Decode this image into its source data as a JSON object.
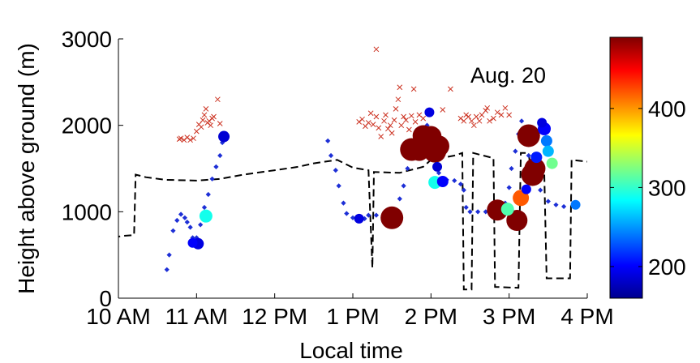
{
  "chart_data": {
    "type": "scatter",
    "title": "",
    "annotation": "Aug. 20",
    "xlabel": "Local time",
    "ylabel": "Height above ground (m)",
    "x_unit": "hours",
    "xlim": [
      10,
      16
    ],
    "ylim": [
      0,
      3000
    ],
    "x_ticks": [
      {
        "value": 10,
        "label": "10 AM"
      },
      {
        "value": 11,
        "label": "11 AM"
      },
      {
        "value": 12,
        "label": "12 PM"
      },
      {
        "value": 13,
        "label": "1 PM"
      },
      {
        "value": 14,
        "label": "2 PM"
      },
      {
        "value": 15,
        "label": "3 PM"
      },
      {
        "value": 16,
        "label": "4 PM"
      }
    ],
    "y_ticks": [
      {
        "value": 0,
        "label": "0"
      },
      {
        "value": 1000,
        "label": "1000"
      },
      {
        "value": 2000,
        "label": "2000"
      },
      {
        "value": 3000,
        "label": "3000"
      }
    ],
    "grid": false,
    "colorbar": {
      "range": [
        160,
        490
      ],
      "ticks": [
        {
          "value": 200,
          "label": "200"
        },
        {
          "value": 300,
          "label": "300"
        },
        {
          "value": 400,
          "label": "400"
        }
      ]
    },
    "colors": {
      "track": "#1d2fd6",
      "cross": "#cc3322",
      "line": "#000000"
    },
    "dashed_line": [
      [
        9.93,
        700
      ],
      [
        10.05,
        720
      ],
      [
        10.2,
        730
      ],
      [
        10.22,
        1430
      ],
      [
        10.35,
        1400
      ],
      [
        10.6,
        1370
      ],
      [
        11.0,
        1360
      ],
      [
        11.3,
        1380
      ],
      [
        11.6,
        1430
      ],
      [
        12.0,
        1480
      ],
      [
        12.3,
        1520
      ],
      [
        12.5,
        1560
      ],
      [
        12.8,
        1600
      ],
      [
        13.0,
        1510
      ],
      [
        13.2,
        1480
      ],
      [
        13.25,
        350
      ],
      [
        13.27,
        1460
      ],
      [
        13.6,
        1450
      ],
      [
        13.9,
        1520
      ],
      [
        14.0,
        1600
      ],
      [
        14.3,
        1650
      ],
      [
        14.4,
        1680
      ],
      [
        14.42,
        100
      ],
      [
        14.52,
        100
      ],
      [
        14.54,
        1680
      ],
      [
        14.8,
        1620
      ],
      [
        14.82,
        130
      ],
      [
        15.12,
        120
      ],
      [
        15.15,
        1680
      ],
      [
        15.25,
        1680
      ],
      [
        15.28,
        1450
      ],
      [
        15.45,
        1450
      ],
      [
        15.48,
        230
      ],
      [
        15.78,
        230
      ],
      [
        15.8,
        1600
      ],
      [
        16.2,
        1560
      ]
    ],
    "track": [
      [
        10.62,
        330
      ],
      [
        10.65,
        500
      ],
      [
        10.7,
        780
      ],
      [
        10.75,
        900
      ],
      [
        10.8,
        970
      ],
      [
        10.85,
        930
      ],
      [
        10.88,
        880
      ],
      [
        10.92,
        820
      ],
      [
        10.95,
        700
      ],
      [
        11.0,
        700
      ],
      [
        11.05,
        850
      ],
      [
        11.1,
        1050
      ],
      [
        11.15,
        1200
      ],
      [
        11.2,
        1380
      ],
      [
        11.25,
        1520
      ],
      [
        11.3,
        1650
      ],
      [
        11.33,
        1800
      ],
      [
        11.35,
        1860
      ],
      [
        12.68,
        1820
      ],
      [
        12.72,
        1650
      ],
      [
        12.78,
        1480
      ],
      [
        12.82,
        1300
      ],
      [
        12.88,
        1100
      ],
      [
        12.92,
        980
      ],
      [
        13.0,
        930
      ],
      [
        13.05,
        900
      ],
      [
        13.15,
        920
      ],
      [
        13.2,
        960
      ],
      [
        13.3,
        960
      ],
      [
        13.4,
        940
      ],
      [
        13.5,
        920
      ],
      [
        13.55,
        1000
      ],
      [
        13.6,
        1150
      ],
      [
        13.65,
        1300
      ],
      [
        13.7,
        1500
      ],
      [
        13.8,
        1700
      ],
      [
        13.9,
        1860
      ],
      [
        13.95,
        2000
      ],
      [
        14.0,
        1850
      ],
      [
        14.05,
        1650
      ],
      [
        14.1,
        1450
      ],
      [
        14.2,
        1370
      ],
      [
        14.3,
        1360
      ],
      [
        14.38,
        1320
      ],
      [
        14.42,
        1250
      ],
      [
        14.45,
        1050
      ],
      [
        14.5,
        1000
      ],
      [
        14.6,
        1000
      ],
      [
        14.7,
        1000
      ],
      [
        14.8,
        1000
      ],
      [
        14.9,
        1020
      ],
      [
        14.95,
        1100
      ],
      [
        15.0,
        1280
      ],
      [
        15.03,
        1500
      ],
      [
        15.08,
        1700
      ],
      [
        15.12,
        1900
      ],
      [
        15.16,
        2050
      ],
      [
        15.2,
        1900
      ],
      [
        15.25,
        1650
      ],
      [
        15.3,
        1500
      ],
      [
        15.35,
        1350
      ],
      [
        15.4,
        1250
      ],
      [
        15.5,
        1120
      ],
      [
        15.6,
        1080
      ],
      [
        15.7,
        1060
      ]
    ],
    "crosses": [
      [
        10.78,
        1840
      ],
      [
        10.8,
        1850
      ],
      [
        10.84,
        1830
      ],
      [
        10.88,
        1860
      ],
      [
        10.92,
        1830
      ],
      [
        10.96,
        1850
      ],
      [
        11.0,
        1930
      ],
      [
        11.03,
        2010
      ],
      [
        11.06,
        1980
      ],
      [
        11.08,
        2060
      ],
      [
        11.1,
        2120
      ],
      [
        11.12,
        2190
      ],
      [
        11.14,
        2030
      ],
      [
        11.16,
        2050
      ],
      [
        11.18,
        2000
      ],
      [
        11.2,
        2080
      ],
      [
        11.22,
        2100
      ],
      [
        11.27,
        2300
      ],
      [
        11.3,
        2020
      ],
      [
        13.08,
        2040
      ],
      [
        13.12,
        2070
      ],
      [
        13.16,
        1990
      ],
      [
        13.2,
        2030
      ],
      [
        13.23,
        2140
      ],
      [
        13.26,
        2010
      ],
      [
        13.3,
        2100
      ],
      [
        13.33,
        1970
      ],
      [
        13.36,
        1870
      ],
      [
        13.4,
        2050
      ],
      [
        13.42,
        2120
      ],
      [
        13.45,
        1960
      ],
      [
        13.48,
        2000
      ],
      [
        13.5,
        1910
      ],
      [
        13.53,
        2060
      ],
      [
        13.55,
        2190
      ],
      [
        13.58,
        2300
      ],
      [
        13.6,
        2440
      ],
      [
        13.62,
        2000
      ],
      [
        13.65,
        2100
      ],
      [
        13.68,
        2060
      ],
      [
        13.72,
        1950
      ],
      [
        13.75,
        2110
      ],
      [
        13.78,
        2420
      ],
      [
        13.8,
        2040
      ],
      [
        13.85,
        2120
      ],
      [
        13.9,
        2080
      ],
      [
        13.3,
        2880
      ],
      [
        14.15,
        2180
      ],
      [
        14.25,
        2420
      ],
      [
        14.38,
        2080
      ],
      [
        14.42,
        2050
      ],
      [
        14.45,
        2120
      ],
      [
        14.48,
        2100
      ],
      [
        14.52,
        2050
      ],
      [
        14.55,
        2000
      ],
      [
        14.58,
        2100
      ],
      [
        14.62,
        2050
      ],
      [
        14.65,
        2120
      ],
      [
        14.7,
        2170
      ],
      [
        14.72,
        2200
      ],
      [
        14.75,
        2050
      ],
      [
        14.8,
        2080
      ],
      [
        14.85,
        2150
      ],
      [
        14.9,
        2120
      ],
      [
        14.95,
        2200
      ],
      [
        15.0,
        2120
      ]
    ],
    "markers": [
      [
        10.95,
        640,
        200,
        6
      ],
      [
        11.02,
        630,
        190,
        7
      ],
      [
        11.12,
        950,
        290,
        8
      ],
      [
        11.35,
        1870,
        185,
        7
      ],
      [
        13.08,
        920,
        190,
        6
      ],
      [
        13.5,
        930,
        490,
        14
      ],
      [
        13.75,
        1720,
        490,
        14
      ],
      [
        13.85,
        1700,
        490,
        12
      ],
      [
        13.9,
        1880,
        490,
        13
      ],
      [
        14.0,
        1870,
        490,
        13
      ],
      [
        14.05,
        1700,
        490,
        14
      ],
      [
        14.1,
        1760,
        490,
        13
      ],
      [
        13.98,
        2150,
        190,
        6
      ],
      [
        14.08,
        1520,
        185,
        6
      ],
      [
        14.05,
        1340,
        290,
        8
      ],
      [
        14.15,
        1350,
        200,
        7
      ],
      [
        14.85,
        1020,
        490,
        13
      ],
      [
        14.98,
        1030,
        310,
        8
      ],
      [
        15.1,
        900,
        490,
        13
      ],
      [
        15.15,
        1160,
        420,
        10
      ],
      [
        15.22,
        1260,
        200,
        6
      ],
      [
        15.25,
        1880,
        490,
        14
      ],
      [
        15.3,
        1430,
        490,
        14
      ],
      [
        15.33,
        1500,
        490,
        13
      ],
      [
        15.35,
        1630,
        210,
        7
      ],
      [
        15.42,
        2030,
        190,
        6
      ],
      [
        15.45,
        1960,
        200,
        8
      ],
      [
        15.48,
        1820,
        240,
        7
      ],
      [
        15.5,
        1700,
        260,
        7
      ],
      [
        15.55,
        1560,
        320,
        7
      ],
      [
        15.85,
        1080,
        240,
        6
      ]
    ]
  }
}
